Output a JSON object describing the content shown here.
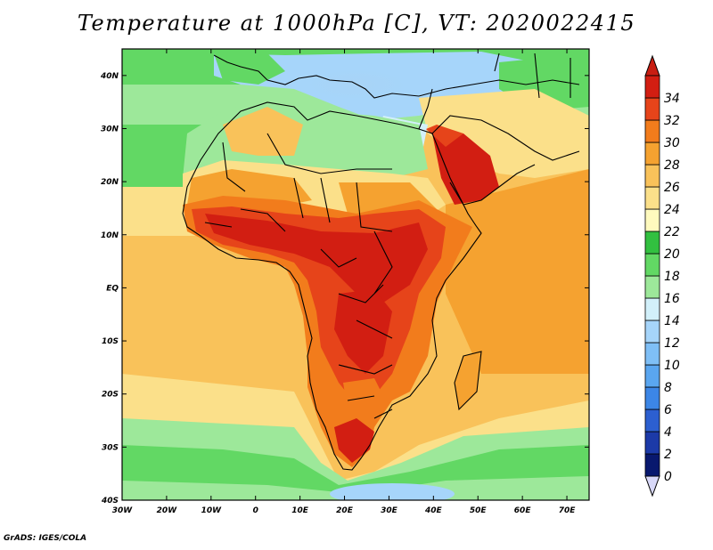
{
  "title": "Temperature at 1000hPa [C], VT: 2020022415",
  "credit": "GrADS: IGES/COLA",
  "map": {
    "lon_range": [
      -30,
      75
    ],
    "lat_range": [
      -40,
      45
    ],
    "lon_ticks": [
      {
        "value": -30,
        "label": "30W"
      },
      {
        "value": -20,
        "label": "20W"
      },
      {
        "value": -10,
        "label": "10W"
      },
      {
        "value": 0,
        "label": "0"
      },
      {
        "value": 10,
        "label": "10E"
      },
      {
        "value": 20,
        "label": "20E"
      },
      {
        "value": 30,
        "label": "30E"
      },
      {
        "value": 40,
        "label": "40E"
      },
      {
        "value": 50,
        "label": "50E"
      },
      {
        "value": 60,
        "label": "60E"
      },
      {
        "value": 70,
        "label": "70E"
      }
    ],
    "lat_ticks": [
      {
        "value": 40,
        "label": "40N"
      },
      {
        "value": 30,
        "label": "30N"
      },
      {
        "value": 20,
        "label": "20N"
      },
      {
        "value": 10,
        "label": "10N"
      },
      {
        "value": 0,
        "label": "EQ"
      },
      {
        "value": -10,
        "label": "10S"
      },
      {
        "value": -20,
        "label": "20S"
      },
      {
        "value": -30,
        "label": "30S"
      },
      {
        "value": -40,
        "label": "40S"
      }
    ]
  },
  "colorbar": {
    "labels": [
      "0",
      "2",
      "4",
      "6",
      "8",
      "10",
      "12",
      "14",
      "16",
      "18",
      "20",
      "22",
      "24",
      "26",
      "28",
      "30",
      "32",
      "34"
    ],
    "colors": [
      "#08186e",
      "#1c3aa8",
      "#2c5fd0",
      "#3c86e6",
      "#5aa6f0",
      "#7fbff6",
      "#a6d5fa",
      "#d2f0fa",
      "#9de89a",
      "#62d864",
      "#32c040",
      "#fffabe",
      "#fbe08a",
      "#f9c25a",
      "#f5a230",
      "#f27c1c",
      "#e6441a",
      "#d21e12"
    ],
    "low_color": "#d8d8f8",
    "high_color": "#c81e12"
  }
}
